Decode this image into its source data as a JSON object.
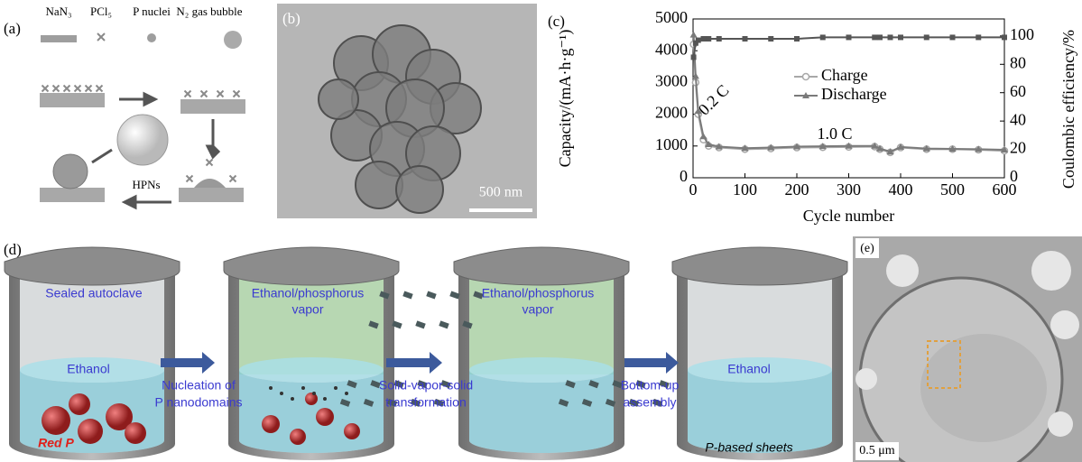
{
  "panels": {
    "a": {
      "label": "(a)",
      "legend": [
        "NaN₃",
        "PCl₅",
        "P nuclei",
        "N₂ gas bubble"
      ],
      "product": "HPNs"
    },
    "b": {
      "label": "(b)",
      "scale_bar": "500 nm"
    },
    "c": {
      "label": "(c)"
    },
    "d": {
      "label": "(d)",
      "autoclave": "Sealed autoclave",
      "liquid": "Ethanol",
      "red_p": "Red P",
      "vapor": [
        [
          "Ethanol/phosphorus",
          "vapor"
        ],
        [
          "Ethanol/phosphorus",
          "vapor"
        ]
      ],
      "steps": [
        [
          "Nucleation of",
          "P nanodomains"
        ],
        [
          "Solid-vapor-solid",
          "transformation"
        ],
        [
          "Bottom-up",
          "assembly"
        ]
      ],
      "liquid_final": "Ethanol",
      "product": "P-based sheets"
    },
    "e": {
      "label": "(e)",
      "scale_bar": "0.5 μm"
    }
  },
  "chart_data": {
    "type": "line",
    "xlabel": "Cycle number",
    "ylabel": "Capacity/(mA·h·g⁻¹)",
    "y2label": "Coulombic efficiency/%",
    "annotations": [
      "0.2 C",
      "1.0 C"
    ],
    "x": [
      1,
      5,
      10,
      20,
      30,
      50,
      100,
      150,
      200,
      250,
      300,
      350,
      360,
      380,
      400,
      450,
      500,
      550,
      600
    ],
    "series": [
      {
        "name": "Charge",
        "color": "#a8a8a8",
        "marker": "circle",
        "values": [
          4200,
          3000,
          2000,
          1200,
          1000,
          950,
          900,
          920,
          950,
          960,
          970,
          980,
          900,
          800,
          950,
          900,
          900,
          880,
          850
        ]
      },
      {
        "name": "Discharge",
        "color": "#7a7a7a",
        "marker": "triangle",
        "values": [
          4500,
          3200,
          2100,
          1300,
          1050,
          980,
          930,
          950,
          980,
          990,
          1000,
          1000,
          920,
          820,
          970,
          920,
          910,
          900,
          880
        ]
      },
      {
        "color": "#555555",
        "marker": "square",
        "axis": "y2",
        "values": [
          85,
          95,
          97,
          98,
          98,
          98,
          98,
          98,
          98,
          99,
          99,
          99,
          99,
          99,
          99,
          99,
          99,
          99,
          99
        ]
      }
    ],
    "xlim": [
      0,
      600
    ],
    "xticks": [
      0,
      100,
      200,
      300,
      400,
      500,
      600
    ],
    "ylim": [
      0,
      5000
    ],
    "yticks": [
      0,
      1000,
      2000,
      3000,
      4000,
      5000
    ],
    "y2lim": [
      0,
      112
    ],
    "y2ticks": [
      0,
      20,
      40,
      60,
      80,
      100
    ]
  }
}
